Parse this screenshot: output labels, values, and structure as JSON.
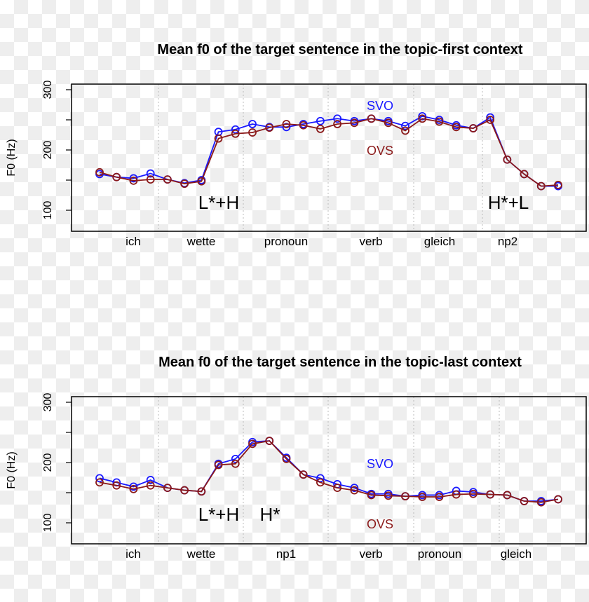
{
  "chart_data": [
    {
      "type": "line",
      "title": "Mean f0 of the target sentence in the topic-first context",
      "ylabel": "F0 (Hz)",
      "xlabel": "",
      "ylim": [
        77,
        316
      ],
      "yticks": [
        100,
        150,
        200,
        250,
        300
      ],
      "ytick_labels": [
        "100",
        "200",
        "300"
      ],
      "word_labels": [
        "ich",
        "wette",
        "pronoun",
        "verb",
        "gleich",
        "np2"
      ],
      "x": [
        1,
        2,
        3,
        4,
        5,
        6,
        7,
        8,
        9,
        10,
        11,
        12,
        13,
        14,
        15,
        16,
        17,
        18,
        19,
        20,
        21,
        22,
        23,
        24,
        25,
        26,
        27,
        28
      ],
      "series": [
        {
          "name": "SVO",
          "color": "#1a1aff",
          "values": [
            160,
            155,
            153,
            161,
            151,
            145,
            150,
            230,
            234,
            243,
            238,
            238,
            243,
            248,
            252,
            248,
            252,
            248,
            240,
            256,
            250,
            241,
            236,
            254,
            184,
            160,
            140,
            140
          ]
        },
        {
          "name": "OVS",
          "color": "#8b1a1a",
          "values": [
            163,
            155,
            149,
            151,
            151,
            144,
            148,
            219,
            227,
            229,
            237,
            243,
            241,
            235,
            243,
            245,
            252,
            245,
            232,
            252,
            247,
            238,
            236,
            250,
            184,
            160,
            140,
            142
          ]
        }
      ],
      "annotations": [
        "L*+H",
        "H*+L"
      ],
      "grid": false
    },
    {
      "type": "line",
      "title": "Mean f0 of the target sentence in the topic-last context",
      "ylabel": "F0 (Hz)",
      "xlabel": "",
      "ylim": [
        77,
        316
      ],
      "yticks": [
        100,
        150,
        200,
        250,
        300
      ],
      "ytick_labels": [
        "100",
        "200",
        "300"
      ],
      "word_labels": [
        "ich",
        "wette",
        "np1",
        "verb",
        "pronoun",
        "gleich"
      ],
      "x": [
        1,
        2,
        3,
        4,
        5,
        6,
        7,
        8,
        9,
        10,
        11,
        12,
        13,
        14,
        15,
        16,
        17,
        18,
        19,
        20,
        21,
        22,
        23,
        24,
        25,
        26,
        27,
        28
      ],
      "series": [
        {
          "name": "SVO",
          "color": "#1a1aff",
          "values": [
            174,
            167,
            160,
            171,
            158,
            154,
            152,
            198,
            206,
            234,
            236,
            208,
            180,
            174,
            164,
            158,
            148,
            148,
            144,
            146,
            146,
            153,
            151,
            147,
            146,
            136,
            136,
            139
          ]
        },
        {
          "name": "OVS",
          "color": "#8b1a1a",
          "values": [
            167,
            162,
            156,
            162,
            158,
            154,
            152,
            196,
            198,
            231,
            236,
            206,
            180,
            167,
            158,
            154,
            146,
            145,
            144,
            143,
            143,
            147,
            148,
            147,
            146,
            136,
            134,
            139
          ]
        }
      ],
      "annotations": [
        "L*+H",
        "H*"
      ],
      "grid": false
    }
  ]
}
